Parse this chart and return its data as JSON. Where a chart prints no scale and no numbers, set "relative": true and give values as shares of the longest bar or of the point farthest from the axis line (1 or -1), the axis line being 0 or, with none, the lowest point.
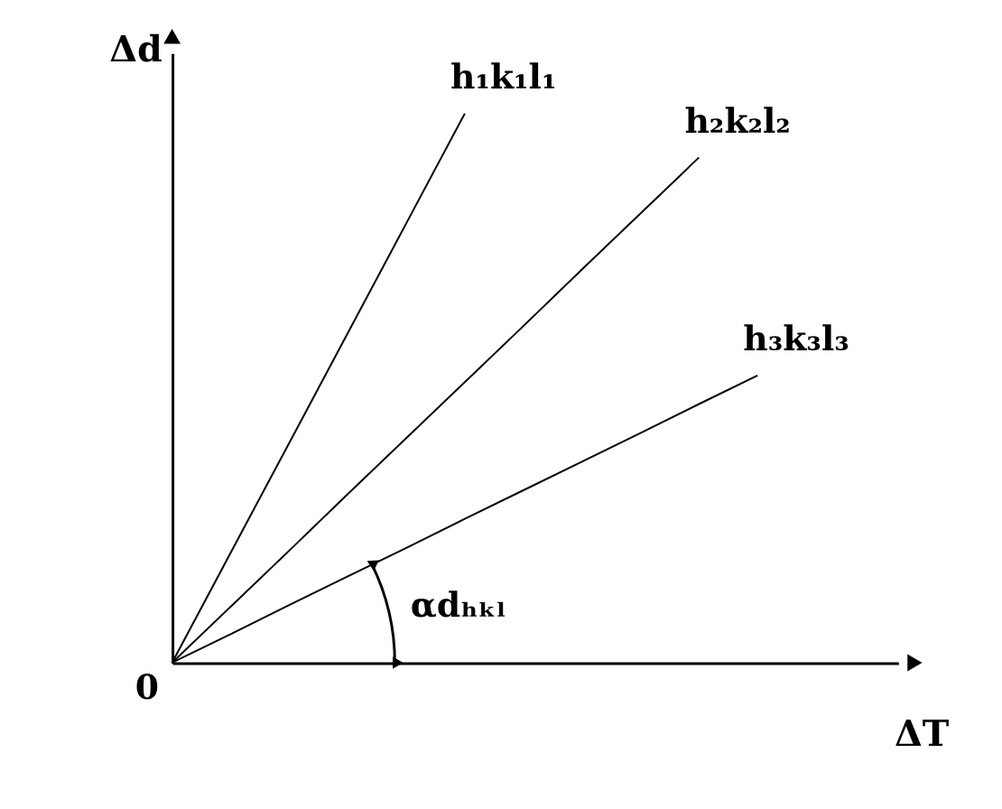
{
  "chart_data": {
    "type": "line",
    "relative": true,
    "xlabel": "ΔT",
    "ylabel": "Δd",
    "legend": false,
    "grid": false,
    "marker": "none",
    "line_style": "solid",
    "categories": [
      null,
      null,
      null,
      null,
      null,
      null,
      null,
      null,
      null,
      null,
      null
    ],
    "series": [
      {
        "name": "h₁k₁l₁",
        "color": "#000000",
        "values": [
          0,
          0.2,
          0.4,
          0.6,
          0.8,
          1,
          null,
          null,
          null,
          null,
          null
        ]
      },
      {
        "name": "h₂k₂l₂",
        "color": "#000000",
        "values": [
          0,
          0.102,
          0.204,
          0.307,
          0.409,
          0.511,
          0.613,
          0.716,
          0.818,
          0.92,
          null
        ]
      },
      {
        "name": "h₃k₃l₃",
        "color": "#000000",
        "values": [
          0,
          0.052,
          0.105,
          0.157,
          0.209,
          0.262,
          0.314,
          0.366,
          0.418,
          0.471,
          0.523
        ]
      }
    ],
    "annotations": [
      "0",
      "αdₕₖₗ"
    ]
  }
}
